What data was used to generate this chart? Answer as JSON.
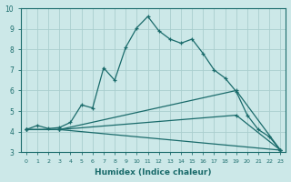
{
  "xlabel": "Humidex (Indice chaleur)",
  "ylabel": "",
  "bg_color": "#cce8e8",
  "line_color": "#1a6b6b",
  "grid_color": "#aacece",
  "xlim": [
    -0.5,
    23.5
  ],
  "ylim": [
    3,
    10
  ],
  "xticks": [
    0,
    1,
    2,
    3,
    4,
    5,
    6,
    7,
    8,
    9,
    10,
    11,
    12,
    13,
    14,
    15,
    16,
    17,
    18,
    19,
    20,
    21,
    22,
    23
  ],
  "yticks": [
    3,
    4,
    5,
    6,
    7,
    8,
    9,
    10
  ],
  "lines": [
    {
      "x": [
        0,
        1,
        2,
        3,
        4,
        5,
        6,
        7,
        8,
        9,
        10,
        11,
        12,
        13,
        14,
        15,
        16,
        17,
        18,
        19,
        20,
        21,
        22,
        23
      ],
      "y": [
        4.1,
        4.3,
        4.15,
        4.2,
        4.45,
        5.3,
        5.15,
        7.1,
        6.5,
        8.1,
        9.05,
        9.6,
        8.9,
        8.5,
        8.3,
        8.5,
        7.8,
        7.0,
        6.6,
        5.95,
        4.8,
        4.1,
        3.75,
        3.1
      ]
    },
    {
      "x": [
        0,
        3,
        19,
        23
      ],
      "y": [
        4.1,
        4.1,
        6.0,
        3.1
      ]
    },
    {
      "x": [
        0,
        3,
        19,
        23
      ],
      "y": [
        4.1,
        4.1,
        4.8,
        3.1
      ]
    },
    {
      "x": [
        0,
        3,
        23
      ],
      "y": [
        4.1,
        4.1,
        3.1
      ]
    }
  ],
  "marker": "+",
  "markersize": 3,
  "linewidth": 0.9
}
